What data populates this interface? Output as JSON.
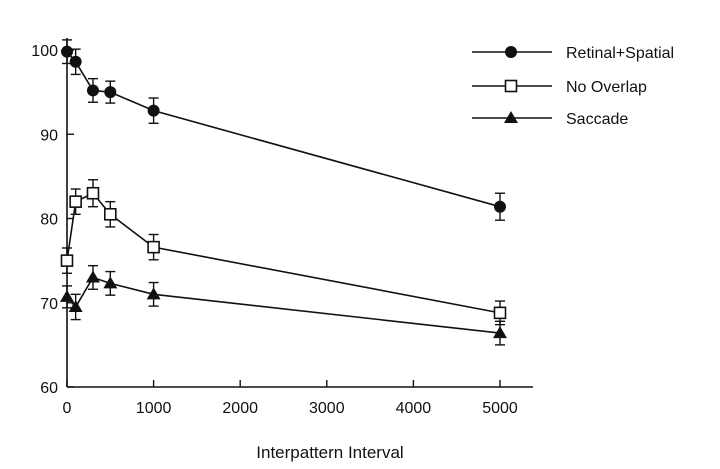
{
  "chart_data": {
    "type": "line",
    "title": "",
    "xlabel": "Interpattern Interval",
    "ylabel": "",
    "xlim": [
      0,
      5400
    ],
    "ylim": [
      60,
      102
    ],
    "xticks": [
      0,
      1000,
      2000,
      3000,
      4000,
      5000
    ],
    "xtick_labels": [
      "0",
      "1000",
      "2000",
      "3000",
      "4000",
      "5000"
    ],
    "yticks": [
      60,
      70,
      80,
      90,
      100
    ],
    "ytick_labels": [
      "60",
      "70",
      "80",
      "90",
      "100"
    ],
    "legend_position": "top-right",
    "series": [
      {
        "name": "Retinal+Spatial",
        "marker": "filled-circle",
        "x": [
          0,
          100,
          300,
          500,
          1000,
          5000
        ],
        "y": [
          99.8,
          98.6,
          95.2,
          95.0,
          92.8,
          81.4
        ],
        "err": [
          1.4,
          1.5,
          1.4,
          1.3,
          1.5,
          1.6
        ]
      },
      {
        "name": "No Overlap",
        "marker": "open-square",
        "x": [
          0,
          100,
          300,
          500,
          1000,
          5000
        ],
        "y": [
          75.0,
          82.0,
          83.0,
          80.5,
          76.6,
          68.8
        ],
        "err": [
          1.5,
          1.5,
          1.6,
          1.5,
          1.5,
          1.4
        ]
      },
      {
        "name": "Saccade",
        "marker": "filled-triangle",
        "x": [
          0,
          100,
          300,
          500,
          1000,
          5000
        ],
        "y": [
          70.7,
          69.5,
          73.0,
          72.3,
          71.0,
          66.4
        ],
        "err": [
          1.3,
          1.5,
          1.4,
          1.4,
          1.4,
          1.4
        ]
      }
    ]
  }
}
